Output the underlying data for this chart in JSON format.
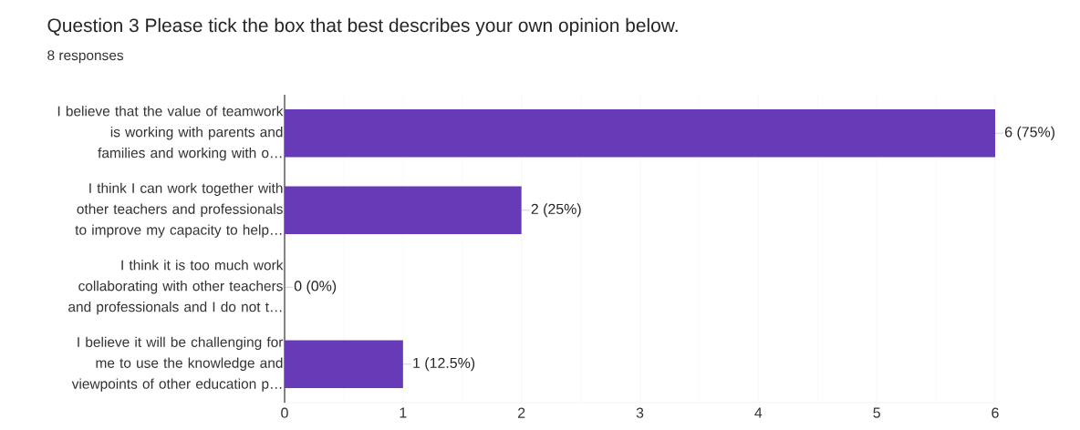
{
  "chart_data": {
    "type": "bar",
    "orientation": "horizontal",
    "title": "Question 3   Please tick the box that best describes your own opinion below.",
    "subtitle": "8 responses",
    "categories": [
      "I believe that the value of teamwork is working with parents and families and working with o…",
      "I think I can work together with other teachers and professionals to improve my capacity to help…",
      "I think it is too much work collaborating with other teachers and professionals and I do not t…",
      "I believe it will be challenging for me to use the knowledge and viewpoints of other education p…"
    ],
    "values": [
      6,
      2,
      0,
      1
    ],
    "value_labels": [
      "6 (75%)",
      "2 (25%)",
      "0 (0%)",
      "1 (12.5%)"
    ],
    "color": "#673ab7",
    "xlim": [
      0,
      6
    ],
    "xticks": [
      0,
      1,
      2,
      3,
      4,
      5,
      6
    ],
    "grid": "x"
  }
}
